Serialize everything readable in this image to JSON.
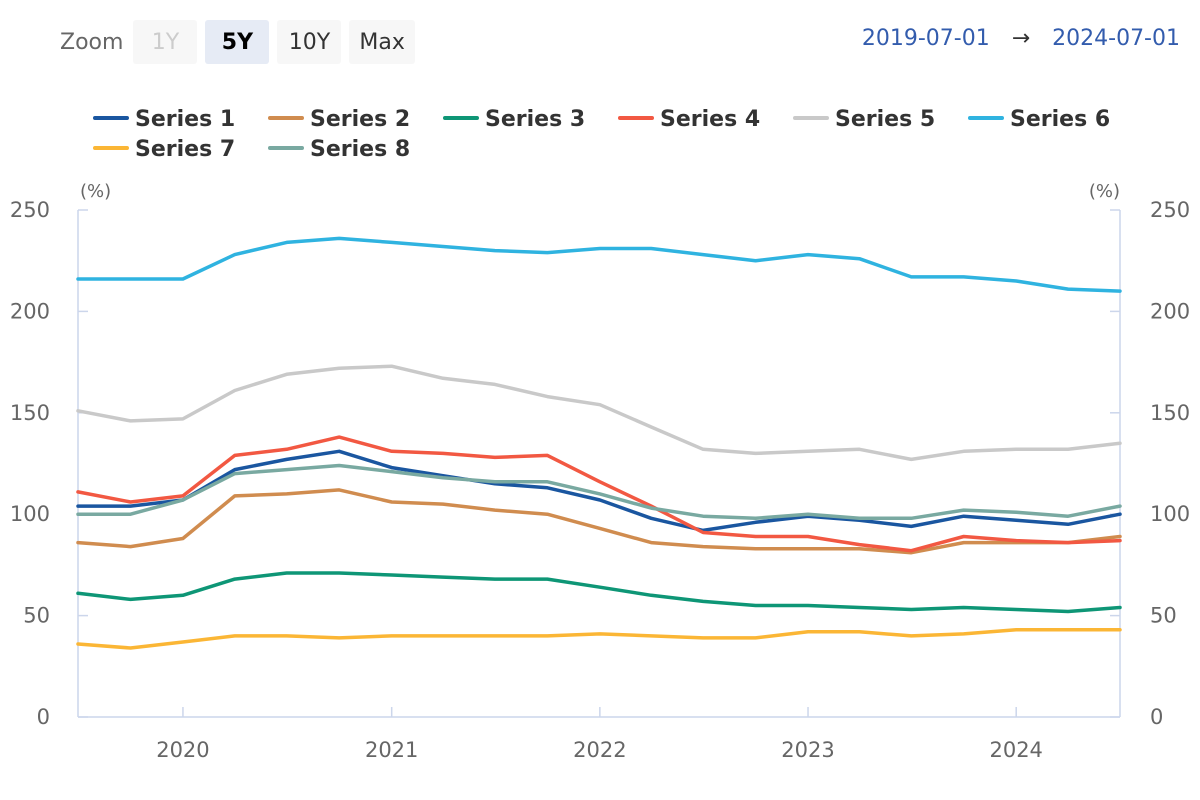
{
  "toolbar": {
    "zoom_label": "Zoom",
    "buttons": [
      {
        "label": "1Y",
        "state": "disabled"
      },
      {
        "label": "5Y",
        "state": "active"
      },
      {
        "label": "10Y",
        "state": "normal"
      },
      {
        "label": "Max",
        "state": "normal"
      }
    ]
  },
  "range": {
    "from": "2019-07-01",
    "arrow": "→",
    "to": "2024-07-01"
  },
  "chart_data": {
    "type": "line",
    "x": [
      "2019-07-01",
      "2019-10-01",
      "2020-01-01",
      "2020-04-01",
      "2020-07-01",
      "2020-10-01",
      "2021-01-01",
      "2021-04-01",
      "2021-07-01",
      "2021-10-01",
      "2022-01-01",
      "2022-04-01",
      "2022-07-01",
      "2022-10-01",
      "2023-01-01",
      "2023-04-01",
      "2023-07-01",
      "2023-10-01",
      "2024-01-01",
      "2024-04-01",
      "2024-07-01"
    ],
    "x_ticks": [
      "2020",
      "2021",
      "2022",
      "2023",
      "2024"
    ],
    "x_tick_dates": [
      "2020-01-01",
      "2021-01-01",
      "2022-01-01",
      "2023-01-01",
      "2024-01-01"
    ],
    "ylim": [
      0,
      250
    ],
    "y_ticks": [
      0,
      50,
      100,
      150,
      200,
      250
    ],
    "y_unit_left": "(%)",
    "y_unit_right": "(%)",
    "grid": false,
    "legend_position": "top",
    "series": [
      {
        "name": "Series 1",
        "color": "#1a56a0",
        "values": [
          104,
          104,
          107,
          122,
          127,
          131,
          123,
          119,
          115,
          113,
          107,
          98,
          92,
          96,
          99,
          97,
          94,
          99,
          97,
          95,
          100
        ]
      },
      {
        "name": "Series 2",
        "color": "#d08c4f",
        "values": [
          86,
          84,
          88,
          109,
          110,
          112,
          106,
          105,
          102,
          100,
          93,
          86,
          84,
          83,
          83,
          83,
          81,
          86,
          86,
          86,
          89
        ]
      },
      {
        "name": "Series 3",
        "color": "#0e9676",
        "values": [
          61,
          58,
          60,
          68,
          71,
          71,
          70,
          69,
          68,
          68,
          64,
          60,
          57,
          55,
          55,
          54,
          53,
          54,
          53,
          52,
          54
        ]
      },
      {
        "name": "Series 4",
        "color": "#f25842",
        "values": [
          111,
          106,
          109,
          129,
          132,
          138,
          131,
          130,
          128,
          129,
          116,
          104,
          91,
          89,
          89,
          85,
          82,
          89,
          87,
          86,
          87
        ]
      },
      {
        "name": "Series 5",
        "color": "#c9c9c9",
        "values": [
          151,
          146,
          147,
          161,
          169,
          172,
          173,
          167,
          164,
          158,
          154,
          143,
          132,
          130,
          131,
          132,
          127,
          131,
          132,
          132,
          135
        ]
      },
      {
        "name": "Series 6",
        "color": "#2fb3e0",
        "values": [
          216,
          216,
          216,
          228,
          234,
          236,
          234,
          232,
          230,
          229,
          231,
          231,
          228,
          225,
          228,
          226,
          217,
          217,
          215,
          211,
          210
        ]
      },
      {
        "name": "Series 7",
        "color": "#fbb635",
        "values": [
          36,
          34,
          37,
          40,
          40,
          39,
          40,
          40,
          40,
          40,
          41,
          40,
          39,
          39,
          42,
          42,
          40,
          41,
          43,
          43,
          43
        ]
      },
      {
        "name": "Series 8",
        "color": "#79a9a1",
        "values": [
          100,
          100,
          107,
          120,
          122,
          124,
          121,
          118,
          116,
          116,
          110,
          103,
          99,
          98,
          100,
          98,
          98,
          102,
          101,
          99,
          104
        ]
      }
    ]
  }
}
